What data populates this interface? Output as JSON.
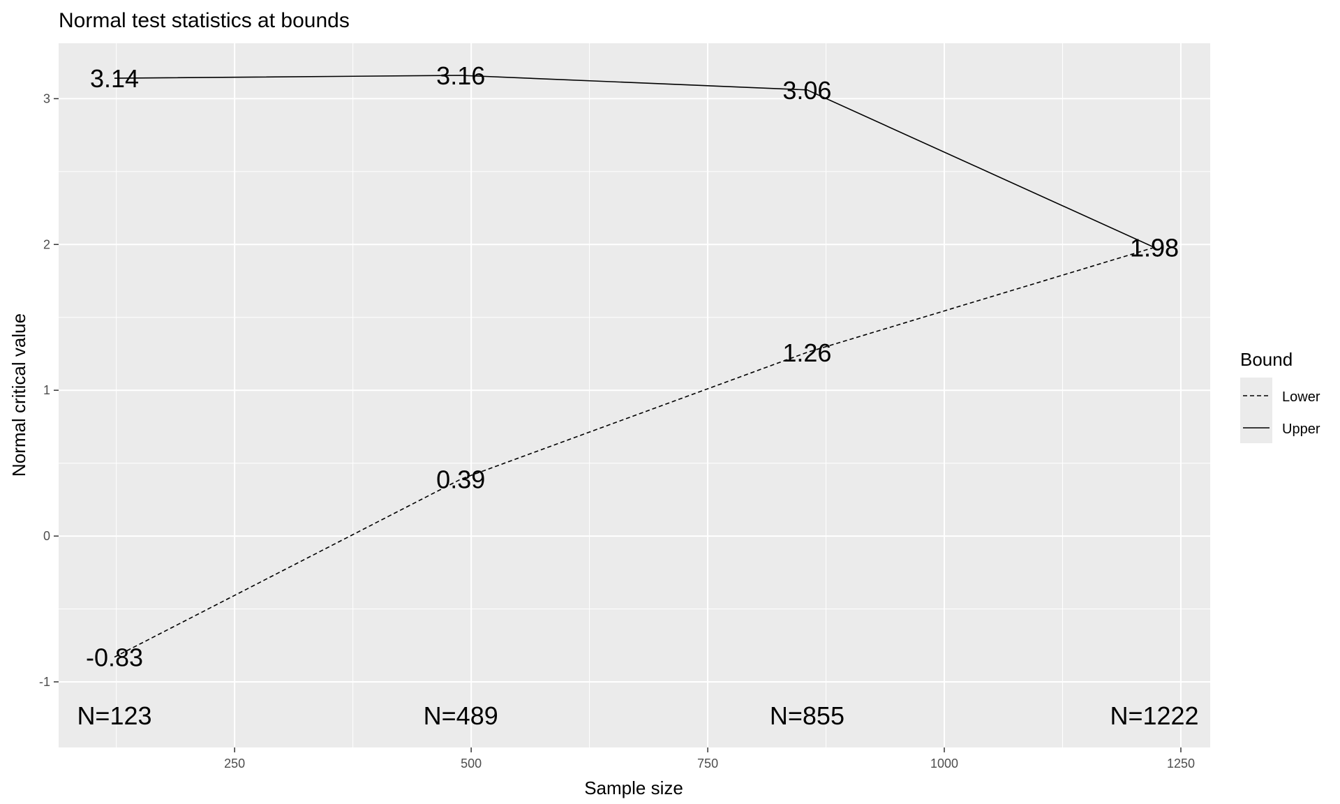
{
  "chart_data": {
    "type": "line",
    "title": "Normal test statistics at bounds",
    "xlabel": "Sample size",
    "ylabel": "Normal critical value",
    "xlim": [
      64,
      1281
    ],
    "ylim": [
      -1.45,
      3.38
    ],
    "xticks": [
      250,
      500,
      750,
      1000,
      1250
    ],
    "yticks": [
      -1,
      0,
      1,
      2,
      3
    ],
    "x": [
      123,
      489,
      855,
      1222
    ],
    "series": [
      {
        "name": "Lower",
        "linetype": "dashed",
        "values": [
          -0.83,
          0.39,
          1.26,
          1.98
        ],
        "labels": [
          "-0.83",
          "0.39",
          "1.26",
          "1.98"
        ]
      },
      {
        "name": "Upper",
        "linetype": "solid",
        "values": [
          3.14,
          3.16,
          3.06,
          1.98
        ],
        "labels": [
          "3.14",
          "3.16",
          "3.06",
          "1.98"
        ]
      }
    ],
    "n_labels": [
      "N=123",
      "N=489",
      "N=855",
      "N=1222"
    ],
    "n_label_y": -1.23,
    "legend": {
      "title": "Bound",
      "position": "right"
    },
    "grid": true,
    "panel_color": "#ebebeb",
    "grid_color": "#ffffff"
  }
}
